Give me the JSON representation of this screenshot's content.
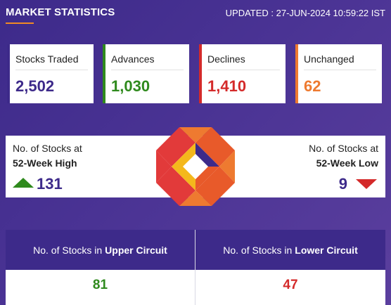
{
  "header": {
    "title": "MARKET STATISTICS",
    "updated": "UPDATED : 27-JUN-2024 10:59:22 IST"
  },
  "stats": {
    "traded": {
      "label": "Stocks Traded",
      "value": "2,502",
      "color": "#3d2a8a"
    },
    "advances": {
      "label": "Advances",
      "value": "1,030",
      "color": "#2f8a1d"
    },
    "declines": {
      "label": "Declines",
      "value": "1,410",
      "color": "#d42a2a"
    },
    "unchanged": {
      "label": "Unchanged",
      "value": "62",
      "color": "#ee7a30"
    }
  },
  "week52": {
    "high": {
      "label": "No. of Stocks at",
      "sub": "52-Week High",
      "value": "131",
      "icon": "up-arrow-icon"
    },
    "low": {
      "label": "No. of Stocks at",
      "sub": "52-Week Low",
      "value": "9",
      "icon": "down-arrow-icon"
    },
    "logo_icon": "exchange-logo-icon"
  },
  "circuit": {
    "upper": {
      "prefix": "No. of Stocks in",
      "bold": "Upper Circuit",
      "value": "81"
    },
    "lower": {
      "prefix": "No. of Stocks in",
      "bold": "Lower Circuit",
      "value": "47"
    }
  }
}
